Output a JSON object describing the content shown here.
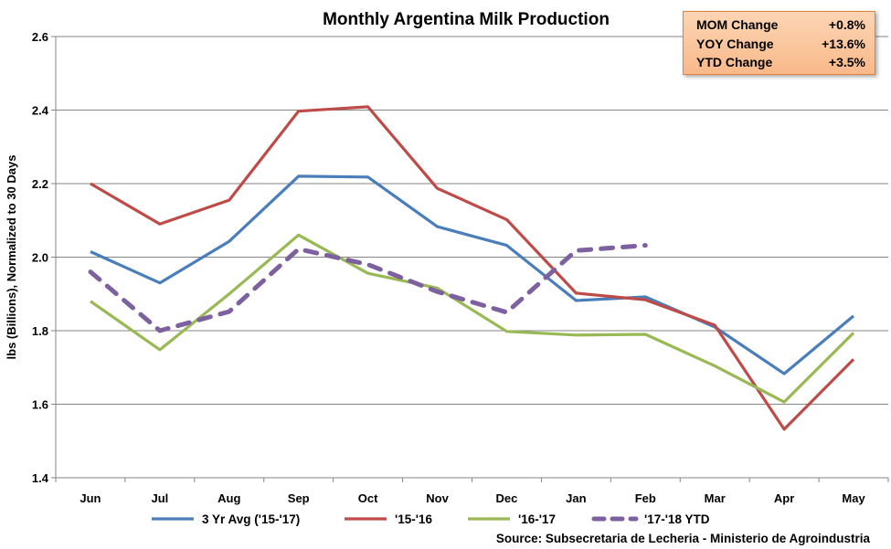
{
  "chart_data": {
    "type": "line",
    "title": "Monthly Argentina Milk Production",
    "ylabel": "lbs (Billions), Normalized to 30 Days",
    "xlabel": "",
    "ylim": [
      1.4,
      2.6
    ],
    "yticks": [
      "1.4",
      "1.6",
      "1.8",
      "2.0",
      "2.2",
      "2.4",
      "2.6"
    ],
    "categories": [
      "Jun",
      "Jul",
      "Aug",
      "Sep",
      "Oct",
      "Nov",
      "Dec",
      "Jan",
      "Feb",
      "Mar",
      "Apr",
      "May"
    ],
    "grid": "horizontal",
    "legend": "bottom",
    "series": [
      {
        "name": "3 Yr Avg ('15-'17)",
        "color": "#4a7ebb",
        "dash": false,
        "values": [
          2.015,
          1.93,
          2.043,
          2.22,
          2.218,
          2.083,
          2.032,
          1.882,
          1.892,
          1.81,
          1.683,
          1.84
        ]
      },
      {
        "name": "'15-'16",
        "color": "#be4b48",
        "dash": false,
        "values": [
          2.2,
          2.09,
          2.155,
          2.397,
          2.409,
          2.187,
          2.102,
          1.902,
          1.884,
          1.815,
          1.532,
          1.722
        ]
      },
      {
        "name": "'16-'17",
        "color": "#98b954",
        "dash": false,
        "values": [
          1.88,
          1.748,
          1.9,
          2.06,
          1.956,
          1.916,
          1.798,
          1.788,
          1.79,
          1.704,
          1.606,
          1.794
        ]
      },
      {
        "name": "'17-'18 YTD",
        "color": "#7d60a0",
        "dash": true,
        "values": [
          1.96,
          1.8,
          1.852,
          2.022,
          1.98,
          1.906,
          1.85,
          2.018,
          2.032,
          null,
          null,
          null
        ]
      }
    ],
    "source": "Source: Subsecretaria de Lecheria - Ministerio de Agroindustria"
  },
  "stats_box": {
    "rows": [
      {
        "label": "MOM Change",
        "value": "+0.8%"
      },
      {
        "label": "YOY Change",
        "value": "+13.6%"
      },
      {
        "label": "YTD Change",
        "value": "+3.5%"
      }
    ],
    "colors": {
      "fill": "#fcd5b4",
      "border": "#e0823a"
    }
  }
}
